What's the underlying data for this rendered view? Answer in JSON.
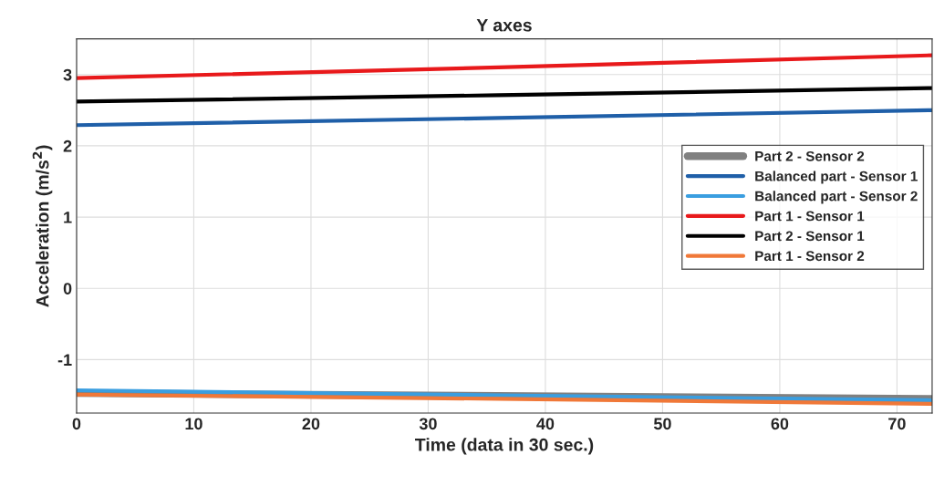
{
  "chart_data": {
    "type": "line",
    "title": "Y axes",
    "xlabel": "Time (data in 30 sec.)",
    "ylabel": "Acceleration (m/s$^{2}$)",
    "xlim": [
      0,
      73
    ],
    "xticks": [
      0,
      10,
      20,
      30,
      40,
      50,
      60,
      70
    ],
    "ylim": [
      -1.75,
      3.5
    ],
    "yticks": [
      -1,
      0,
      1,
      2,
      3
    ],
    "grid": true,
    "legend": "center right",
    "line_style": "solid",
    "series": [
      {
        "name": "Part 2 - Sensor 2",
        "color": "#808080",
        "x": [
          0,
          36,
          73
        ],
        "values": [
          -1.47,
          -1.51,
          -1.55
        ]
      },
      {
        "name": "Balanced part - Sensor 1",
        "color": "#1f5fa8",
        "x": [
          0,
          36,
          73
        ],
        "values": [
          2.29,
          2.39,
          2.5
        ]
      },
      {
        "name": "Balanced part - Sensor 2",
        "color": "#3a9ee0",
        "x": [
          0,
          36,
          73
        ],
        "values": [
          -1.43,
          -1.5,
          -1.57
        ]
      },
      {
        "name": "Part 1 - Sensor 1",
        "color": "#e8191b",
        "x": [
          0,
          36,
          73
        ],
        "values": [
          2.95,
          3.1,
          3.27
        ]
      },
      {
        "name": "Part 2 - Sensor 1",
        "color": "#000000",
        "x": [
          0,
          36,
          73
        ],
        "values": [
          2.62,
          2.71,
          2.81
        ]
      },
      {
        "name": "Part 1 - Sensor 2",
        "color": "#f07838",
        "x": [
          0,
          36,
          73
        ],
        "values": [
          -1.49,
          -1.55,
          -1.62
        ]
      }
    ]
  }
}
